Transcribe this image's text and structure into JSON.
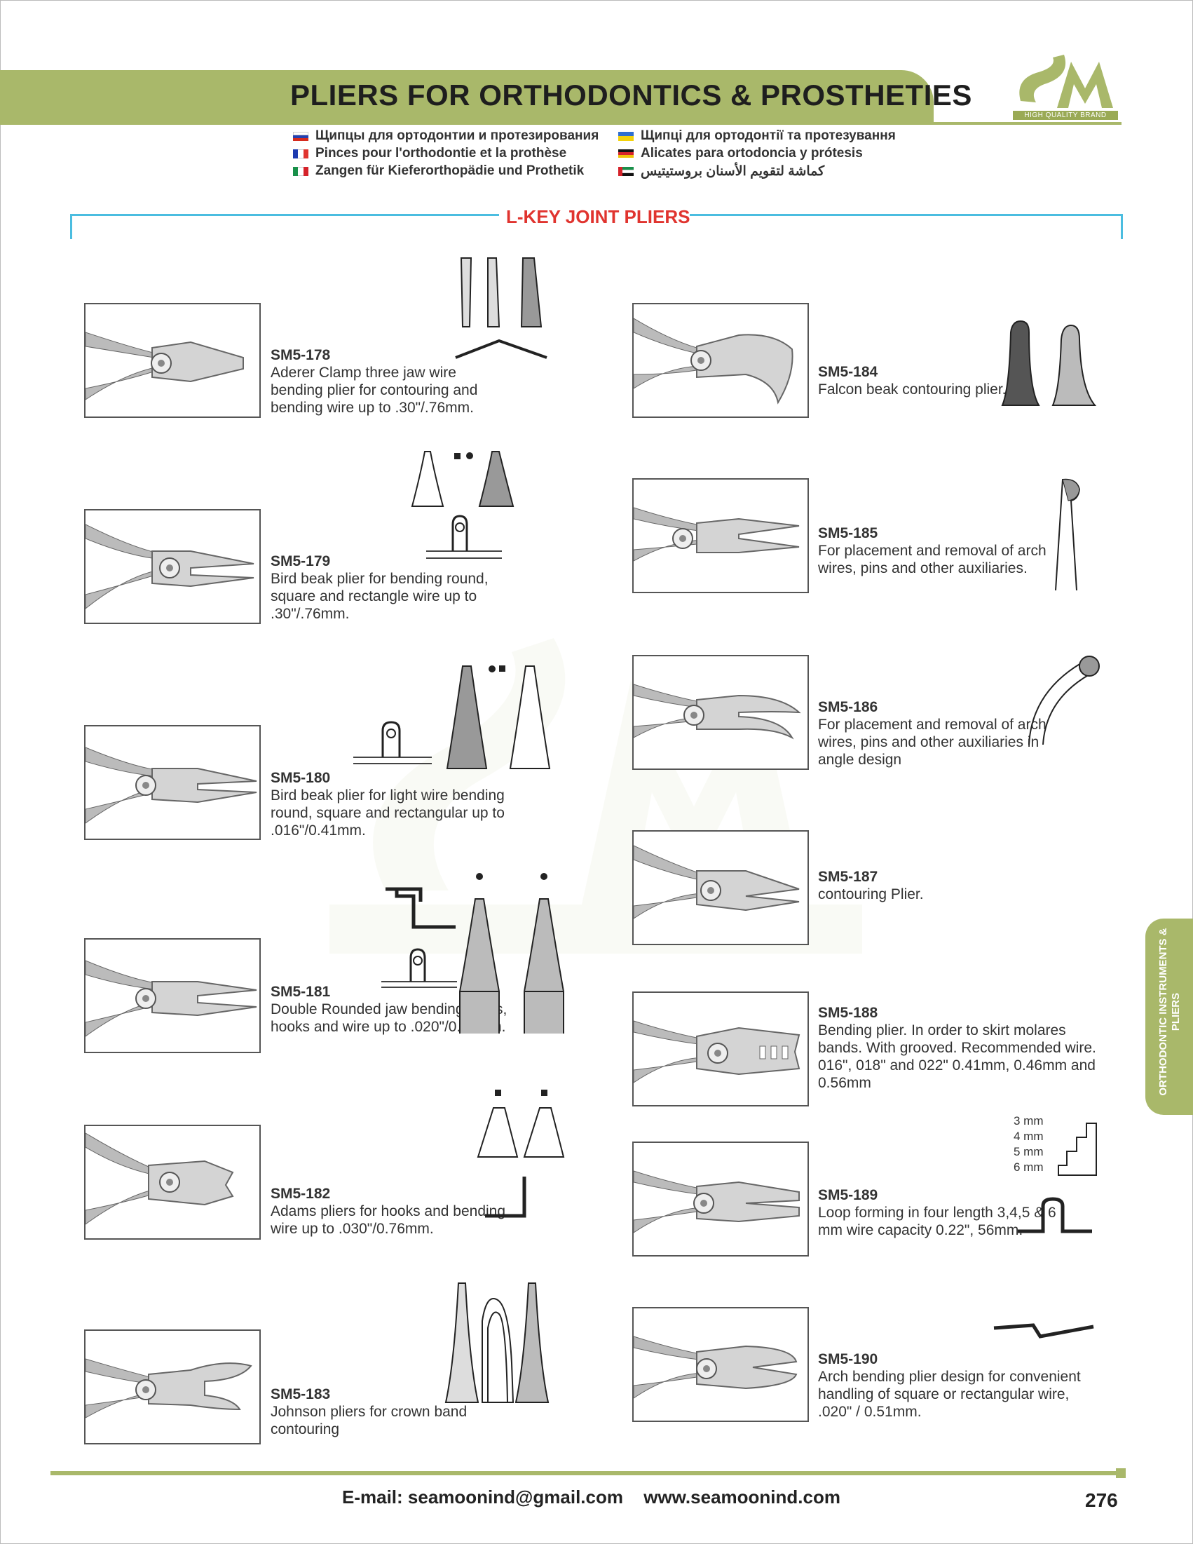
{
  "header": {
    "title": "PLIERS FOR ORTHODONTICS & PROSTHETIES",
    "logo_text": "SM",
    "logo_tagline": "HIGH QUALITY BRAND"
  },
  "translations": [
    {
      "lang": "ru",
      "text": "Щипцы для ортодонтии и протезирования"
    },
    {
      "lang": "fr",
      "text": "Pinces pour l'orthodontie et la prothèse"
    },
    {
      "lang": "it",
      "text": "Zangen für Kieferorthopädie und Prothetik"
    },
    {
      "lang": "ua",
      "text": "Щипці для ортодонтії та протезування"
    },
    {
      "lang": "de",
      "text": "Alicates para ortodoncia y prótesis"
    },
    {
      "lang": "ae",
      "text": "كماشة لتقويم الأسنان بروستيتيس"
    }
  ],
  "section": {
    "title": "L-KEY JOINT PLIERS"
  },
  "products": [
    {
      "code": "SM5-178",
      "description": "Aderer Clamp three jaw wire bending plier for contouring and bending wire up to .30\"/.76mm."
    },
    {
      "code": "SM5-179",
      "description": "Bird beak plier for bending round, square and rectangle wire up to .30\"/.76mm."
    },
    {
      "code": "SM5-180",
      "description": "Bird beak plier for light wire bending round, square and rectangular up to .016\"/0.41mm."
    },
    {
      "code": "SM5-181",
      "description": "Double Rounded jaw bending pliers, hooks and wire up to .020\"/0.51mm."
    },
    {
      "code": "SM5-182",
      "description": "Adams pliers for hooks and bending wire up to .030\"/0.76mm."
    },
    {
      "code": "SM5-183",
      "description": "Johnson pliers for crown band contouring"
    },
    {
      "code": "SM5-184",
      "description": "Falcon beak contouring plier."
    },
    {
      "code": "SM5-185",
      "description": "For placement and removal of arch wires, pins and other auxiliaries."
    },
    {
      "code": "SM5-186",
      "description": "For placement and removal of arch wires, pins and other auxiliaries in angle design"
    },
    {
      "code": "SM5-187",
      "description": "contouring Plier."
    },
    {
      "code": "SM5-188",
      "description": "Bending plier. In order to skirt molares bands. With grooved. Recommended wire. 016\", 018\" and 022\" 0.41mm, 0.46mm and 0.56mm"
    },
    {
      "code": "SM5-189",
      "description": "Loop forming in four length 3,4,5 & 6 mm wire capacity 0.22\", 56mm."
    },
    {
      "code": "SM5-190",
      "description": "Arch bending plier design for convenient handling of square or rectangular wire, .020\" / 0.51mm."
    }
  ],
  "step_labels": [
    "3 mm",
    "4 mm",
    "5 mm",
    "6 mm"
  ],
  "side_tab": {
    "text": "ORTHODONTIC INSTRUMENTS & PLIERS"
  },
  "footer": {
    "email": "E-mail: seamoonind@gmail.com",
    "website": "www.seamoonind.com",
    "page_number": "276"
  },
  "colors": {
    "brand_green": "#a9b86a",
    "section_blue": "#4bbde0",
    "section_red": "#e0342f"
  }
}
